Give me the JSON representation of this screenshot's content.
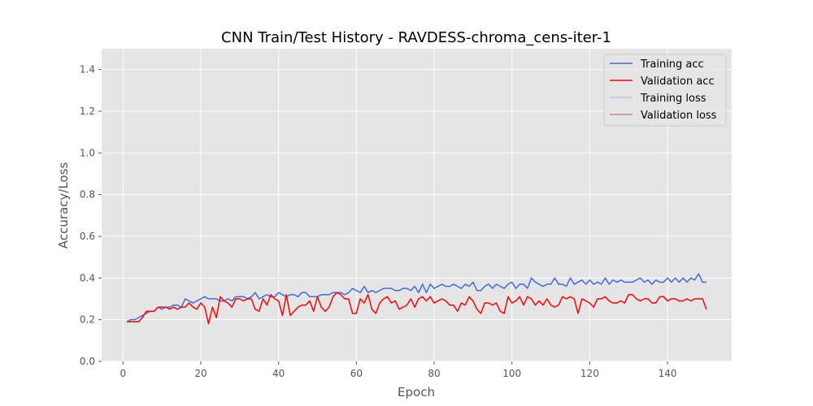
{
  "chart_data": {
    "type": "line",
    "title": "CNN Train/Test History -  RAVDESS-chroma_cens-iter-1",
    "xlabel": "Epoch",
    "ylabel": "Accuracy/Loss",
    "xlim": [
      -5.5,
      156.5
    ],
    "ylim": [
      0,
      1.5
    ],
    "xticks": [
      0,
      20,
      40,
      60,
      80,
      100,
      120,
      140
    ],
    "yticks": [
      0.0,
      0.2,
      0.4,
      0.6,
      0.8,
      1.0,
      1.2,
      1.4
    ],
    "xtick_labels": [
      "0",
      "20",
      "40",
      "60",
      "80",
      "100",
      "120",
      "140"
    ],
    "ytick_labels": [
      "0.0",
      "0.2",
      "0.4",
      "0.6",
      "0.8",
      "1.0",
      "1.2",
      "1.4"
    ],
    "grid": true,
    "legend_position": "top-right",
    "x_start": 1,
    "series": [
      {
        "name": "Training acc",
        "color": "#4169e1",
        "values": [
          0.19,
          0.2,
          0.2,
          0.21,
          0.22,
          0.23,
          0.24,
          0.24,
          0.26,
          0.25,
          0.26,
          0.26,
          0.27,
          0.27,
          0.26,
          0.3,
          0.29,
          0.28,
          0.29,
          0.3,
          0.31,
          0.3,
          0.3,
          0.3,
          0.29,
          0.29,
          0.3,
          0.29,
          0.31,
          0.31,
          0.31,
          0.3,
          0.31,
          0.33,
          0.3,
          0.31,
          0.32,
          0.31,
          0.31,
          0.33,
          0.32,
          0.31,
          0.32,
          0.32,
          0.31,
          0.33,
          0.33,
          0.31,
          0.31,
          0.31,
          0.32,
          0.32,
          0.32,
          0.33,
          0.33,
          0.33,
          0.32,
          0.33,
          0.35,
          0.34,
          0.33,
          0.36,
          0.33,
          0.34,
          0.33,
          0.34,
          0.35,
          0.35,
          0.35,
          0.34,
          0.34,
          0.35,
          0.35,
          0.34,
          0.36,
          0.33,
          0.37,
          0.33,
          0.37,
          0.35,
          0.36,
          0.37,
          0.36,
          0.36,
          0.37,
          0.36,
          0.35,
          0.37,
          0.36,
          0.38,
          0.34,
          0.34,
          0.36,
          0.37,
          0.35,
          0.37,
          0.36,
          0.35,
          0.37,
          0.38,
          0.35,
          0.37,
          0.37,
          0.35,
          0.4,
          0.38,
          0.37,
          0.36,
          0.37,
          0.37,
          0.4,
          0.37,
          0.37,
          0.36,
          0.4,
          0.37,
          0.38,
          0.39,
          0.37,
          0.39,
          0.37,
          0.38,
          0.37,
          0.4,
          0.37,
          0.39,
          0.38,
          0.39,
          0.38,
          0.38,
          0.38,
          0.39,
          0.4,
          0.38,
          0.39,
          0.37,
          0.39,
          0.38,
          0.38,
          0.4,
          0.38,
          0.4,
          0.38,
          0.4,
          0.38,
          0.4,
          0.39,
          0.42,
          0.38,
          0.38
        ]
      },
      {
        "name": "Validation acc",
        "color": "#ff0000",
        "values": [
          0.19,
          0.19,
          0.19,
          0.19,
          0.21,
          0.24,
          0.24,
          0.24,
          0.26,
          0.26,
          0.26,
          0.25,
          0.26,
          0.25,
          0.26,
          0.26,
          0.28,
          0.26,
          0.25,
          0.28,
          0.26,
          0.18,
          0.26,
          0.21,
          0.31,
          0.29,
          0.28,
          0.26,
          0.3,
          0.3,
          0.29,
          0.3,
          0.3,
          0.25,
          0.24,
          0.3,
          0.27,
          0.32,
          0.3,
          0.29,
          0.22,
          0.32,
          0.22,
          0.24,
          0.26,
          0.27,
          0.27,
          0.29,
          0.24,
          0.31,
          0.26,
          0.24,
          0.26,
          0.31,
          0.33,
          0.32,
          0.3,
          0.3,
          0.23,
          0.23,
          0.3,
          0.28,
          0.32,
          0.25,
          0.23,
          0.28,
          0.3,
          0.31,
          0.28,
          0.29,
          0.25,
          0.26,
          0.27,
          0.3,
          0.26,
          0.3,
          0.31,
          0.29,
          0.31,
          0.28,
          0.29,
          0.3,
          0.29,
          0.27,
          0.27,
          0.24,
          0.28,
          0.27,
          0.31,
          0.29,
          0.25,
          0.23,
          0.28,
          0.28,
          0.27,
          0.28,
          0.24,
          0.23,
          0.31,
          0.28,
          0.29,
          0.31,
          0.27,
          0.31,
          0.3,
          0.27,
          0.29,
          0.27,
          0.3,
          0.27,
          0.26,
          0.27,
          0.31,
          0.3,
          0.31,
          0.3,
          0.23,
          0.3,
          0.29,
          0.28,
          0.26,
          0.3,
          0.3,
          0.31,
          0.29,
          0.28,
          0.28,
          0.29,
          0.28,
          0.32,
          0.32,
          0.3,
          0.29,
          0.3,
          0.3,
          0.28,
          0.28,
          0.31,
          0.31,
          0.29,
          0.3,
          0.3,
          0.29,
          0.29,
          0.3,
          0.29,
          0.3,
          0.3,
          0.3,
          0.25
        ]
      },
      {
        "name": "Training loss",
        "color": "#aec7e8",
        "values": []
      },
      {
        "name": "Validation loss",
        "color": "#bc8f8f",
        "values": []
      }
    ]
  }
}
